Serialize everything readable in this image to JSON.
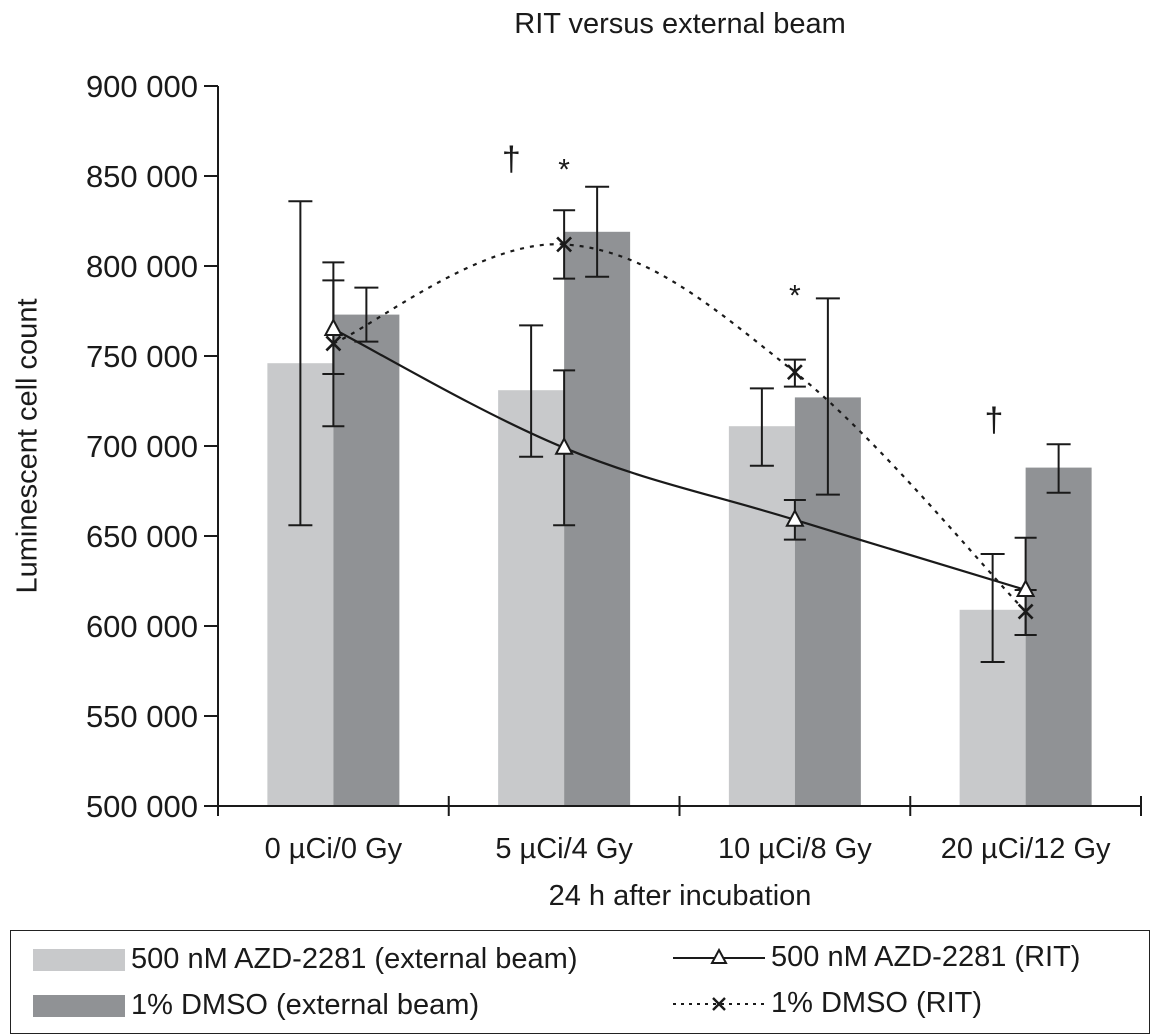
{
  "chart_data": {
    "type": "bar",
    "title": "RIT versus external beam",
    "xlabel": "24 h after incubation",
    "ylabel": "Luminescent cell count",
    "ylim": [
      500000,
      900000
    ],
    "yticks": [
      500000,
      550000,
      600000,
      650000,
      700000,
      750000,
      800000,
      850000,
      900000
    ],
    "ytick_labels": [
      "500 000",
      "550 000",
      "600 000",
      "650 000",
      "700 000",
      "750 000",
      "800 000",
      "850 000",
      "900 000"
    ],
    "categories": [
      "0 µCi/0 Gy",
      "5 µCi/4 Gy",
      "10 µCi/8 Gy",
      "20 µCi/12 Gy"
    ],
    "grid": false,
    "legend_position": "bottom",
    "bar_series": [
      {
        "name": "500 nM AZD-2281 (external beam)",
        "color": "#c8c9cb",
        "values": [
          746000,
          731000,
          711000,
          609000
        ],
        "err_low": [
          656000,
          694000,
          689000,
          580000
        ],
        "err_high": [
          836000,
          767000,
          732000,
          640000
        ]
      },
      {
        "name": "1% DMSO (external beam)",
        "color": "#909295",
        "values": [
          773000,
          819000,
          727000,
          688000
        ],
        "err_low": [
          758000,
          794000,
          673000,
          674000
        ],
        "err_high": [
          788000,
          844000,
          782000,
          701000
        ]
      }
    ],
    "line_series": [
      {
        "name": "500  nM AZD-2281 (RIT)",
        "marker": "triangle",
        "style": "solid",
        "values": [
          765000,
          699000,
          659000,
          620000
        ],
        "err_low": [
          740000,
          656000,
          648000,
          595000
        ],
        "err_high": [
          792000,
          742000,
          670000,
          649000
        ]
      },
      {
        "name": "1% DMSO (RIT)",
        "marker": "x",
        "style": "dotted",
        "values": [
          757000,
          812000,
          741000,
          608000
        ],
        "err_low": [
          711000,
          793000,
          733000,
          595000
        ],
        "err_high": [
          802000,
          831000,
          748000,
          620000
        ]
      }
    ],
    "annotations": [
      {
        "text": "†",
        "category": 1,
        "offset": -1,
        "y": 853000
      },
      {
        "text": "*",
        "category": 1,
        "offset": 0,
        "y": 848000
      },
      {
        "text": "*",
        "category": 2,
        "offset": 0,
        "y": 778000
      },
      {
        "text": "†",
        "category": 3,
        "offset": -0.6,
        "y": 708000
      }
    ]
  }
}
